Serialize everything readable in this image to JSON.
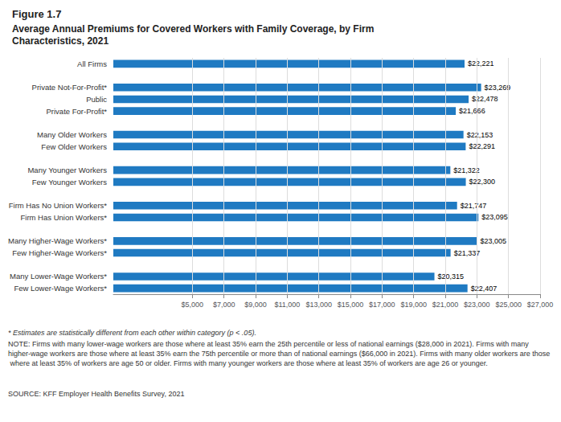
{
  "chart_data": {
    "type": "bar",
    "orientation": "horizontal",
    "title": "Figure 1.7",
    "subtitle": "Average Annual Premiums for Covered Workers with Family Coverage, by Firm\nCharacteristics, 2021",
    "categories": [
      "Few Lower-Wage Workers*",
      "Many Lower-Wage Workers*",
      null,
      "Few Higher-Wage Workers*",
      "Many Higher-Wage Workers*",
      null,
      "Firm Has Union Workers*",
      "Firm Has No Union Workers*",
      null,
      "Few Younger Workers",
      "Many Younger Workers",
      null,
      "Few Older Workers",
      "Many Older Workers",
      null,
      "Private For-Profit*",
      "Public",
      "Private Not-For-Profit*",
      null,
      "All Firms"
    ],
    "values": [
      22407,
      20315,
      null,
      21337,
      23005,
      null,
      23095,
      21747,
      null,
      22300,
      21322,
      null,
      22291,
      22153,
      null,
      21666,
      22478,
      23269,
      null,
      22221
    ],
    "value_labels": [
      "$22,407",
      "$20,315",
      null,
      "$21,337",
      "$23,005",
      null,
      "$23,095",
      "$21,747",
      null,
      "$22,300",
      "$21,322",
      null,
      "$22,291",
      "$22,153",
      null,
      "$21,666",
      "$22,478",
      "$23,269",
      null,
      "$22,221"
    ],
    "color": "#1F7AC2",
    "xlim": [
      0,
      27000
    ],
    "xticks": [
      {
        "value": 5000,
        "label": "$5,000"
      },
      {
        "value": 7000,
        "label": "$7,000"
      },
      {
        "value": 9000,
        "label": "$9,000"
      },
      {
        "value": 11000,
        "label": "$11,000"
      },
      {
        "value": 13000,
        "label": "$13,000"
      },
      {
        "value": 15000,
        "label": "$15,000"
      },
      {
        "value": 17000,
        "label": "$17,000"
      },
      {
        "value": 19000,
        "label": "$19,000"
      },
      {
        "value": 21000,
        "label": "$21,000"
      },
      {
        "value": 23000,
        "label": "$23,000"
      },
      {
        "value": 25000,
        "label": "$25,000"
      },
      {
        "value": 27000,
        "label": "$27,000"
      }
    ],
    "grid": true,
    "data_labels": true,
    "annotations": [
      "* Estimates are statistically different from each other within category (p < .05).",
      "NOTE: Firms with many lower-wage workers are those where at least 35% earn the 25th percentile or less of national earnings ($28,000 in 2021). Firms with many higher-wage workers are those where at least 35% earn the 75th percentile or more than of national earnings ($66,000 in 2021). Firms with many older workers are those where at least 35% of workers are age 50 or older. Firms with many younger workers are those where at least 35% of workers are age 26 or younger.",
      "SOURCE: KFF Employer Health Benefits Survey, 2021"
    ]
  }
}
